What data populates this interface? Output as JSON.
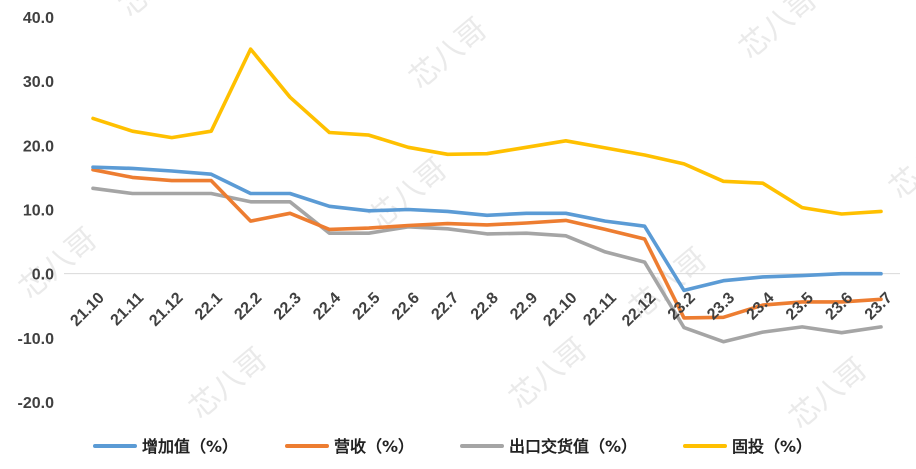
{
  "chart_data": {
    "type": "line",
    "categories": [
      "21.10",
      "21.11",
      "21.12",
      "22.1",
      "22.2",
      "22.3",
      "22.4",
      "22.5",
      "22.6",
      "22.7",
      "22.8",
      "22.9",
      "22.10",
      "22.11",
      "22.12",
      "23.2",
      "23.3",
      "23.4",
      "23.5",
      "23.6",
      "23.7"
    ],
    "series": [
      {
        "name": "增加值（%）",
        "color": "#5b9bd5",
        "values": [
          16.6,
          16.4,
          16.0,
          15.5,
          12.5,
          12.5,
          10.5,
          9.8,
          10.0,
          9.7,
          9.1,
          9.4,
          9.4,
          8.2,
          7.4,
          -2.6,
          -1.1,
          -0.5,
          -0.3,
          0.0,
          0.0
        ]
      },
      {
        "name": "营收（%）",
        "color": "#ed7d31",
        "values": [
          16.2,
          15.0,
          14.5,
          14.5,
          8.2,
          9.4,
          6.9,
          7.1,
          7.5,
          7.8,
          7.6,
          7.9,
          8.3,
          6.9,
          5.4,
          -6.9,
          -6.8,
          -4.9,
          -4.4,
          -4.4,
          -4.0
        ]
      },
      {
        "name": "出口交货值（%）",
        "color": "#a5a5a5",
        "values": [
          13.3,
          12.5,
          12.5,
          12.5,
          11.2,
          11.2,
          6.3,
          6.3,
          7.3,
          7.0,
          6.2,
          6.3,
          5.9,
          3.4,
          1.8,
          -8.4,
          -10.6,
          -9.1,
          -8.3,
          -9.2,
          -8.3
        ]
      },
      {
        "name": "固投（%）",
        "color": "#ffc000",
        "values": [
          24.2,
          22.2,
          21.2,
          22.2,
          35.0,
          27.5,
          22.0,
          21.6,
          19.7,
          18.6,
          18.7,
          19.7,
          20.7,
          19.6,
          18.5,
          17.1,
          14.4,
          14.1,
          10.3,
          9.3,
          9.7
        ]
      }
    ],
    "yticks": [
      "40.0",
      "30.0",
      "20.0",
      "10.0",
      "0.0",
      "-10.0",
      "-20.0"
    ],
    "ylim": [
      -20,
      40
    ],
    "grid": false,
    "legend_position": "bottom",
    "title": "",
    "xlabel": "",
    "ylabel": ""
  },
  "watermark": {
    "text": "芯八哥"
  }
}
